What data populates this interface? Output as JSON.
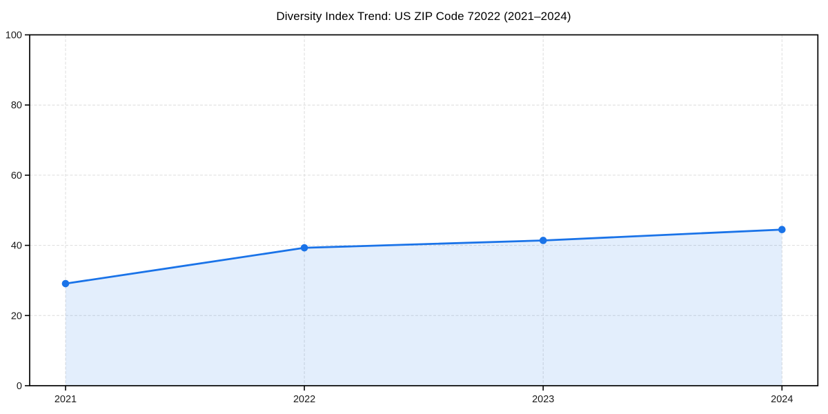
{
  "chart_data": {
    "type": "line",
    "title": "Diversity Index Trend: US ZIP Code 72022 (2021–2024)",
    "x": [
      "2021",
      "2022",
      "2023",
      "2024"
    ],
    "values": [
      29.1,
      39.3,
      41.4,
      44.5
    ],
    "xlabel": "",
    "ylabel": "",
    "ylim": [
      0,
      100
    ],
    "yticks": [
      0,
      20,
      40,
      60,
      80,
      100
    ],
    "grid": "dashed, both axes",
    "legend": "none",
    "area_fill": true,
    "marker": "circle",
    "colors": {
      "line": "#1a73e8",
      "marker": "#1a73e8",
      "area_fill_rgba": "rgba(26,115,232,0.12)",
      "gridline": "#dcdcdc",
      "axis_border": "#000000",
      "tick_label": "#1a1a1a",
      "title": "#000000",
      "background": "#ffffff"
    }
  }
}
